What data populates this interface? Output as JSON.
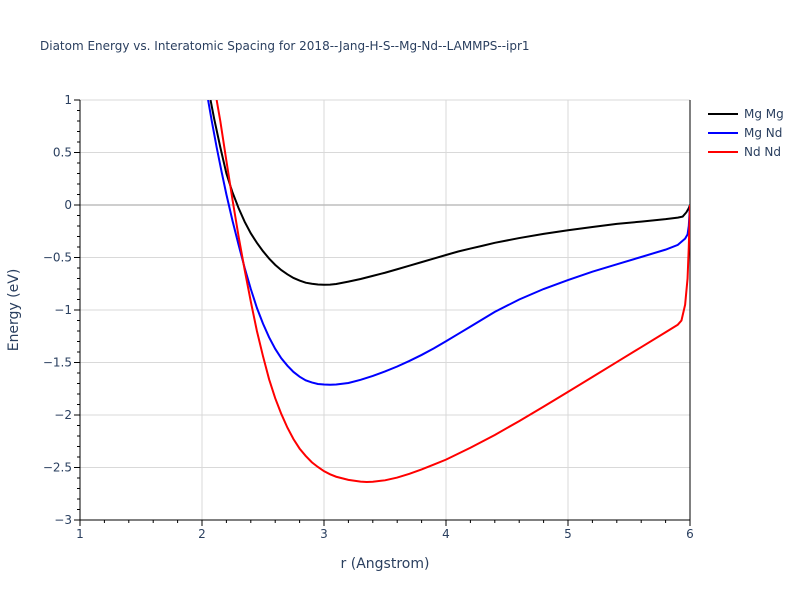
{
  "chart_data": {
    "type": "line",
    "title": "Diatom Energy vs. Interatomic Spacing for 2018--Jang-H-S--Mg-Nd--LAMMPS--ipr1",
    "xlabel": "r (Angstrom)",
    "ylabel": "Energy (eV)",
    "xlim": [
      1,
      6
    ],
    "ylim": [
      -3,
      1
    ],
    "xticks": [
      1,
      2,
      3,
      4,
      5,
      6
    ],
    "xtick_labels": [
      "1",
      "2",
      "3",
      "4",
      "5",
      "6"
    ],
    "yticks": [
      -3,
      -2.5,
      -2,
      -1.5,
      -1,
      -0.5,
      0,
      0.5,
      1
    ],
    "ytick_labels": [
      "−3",
      "−2.5",
      "−2",
      "−1.5",
      "−1",
      "−0.5",
      "0",
      "0.5",
      "1"
    ],
    "grid": true,
    "legend_position": "top-right",
    "series": [
      {
        "name": "Mg Mg",
        "color": "#000000",
        "x": [
          2.07,
          2.1,
          2.15,
          2.2,
          2.25,
          2.3,
          2.35,
          2.4,
          2.45,
          2.5,
          2.55,
          2.6,
          2.65,
          2.7,
          2.75,
          2.8,
          2.85,
          2.9,
          2.95,
          3.0,
          3.05,
          3.1,
          3.2,
          3.3,
          3.4,
          3.5,
          3.6,
          3.7,
          3.8,
          3.9,
          4.0,
          4.1,
          4.2,
          4.3,
          4.4,
          4.6,
          4.8,
          5.0,
          5.2,
          5.4,
          5.6,
          5.8,
          5.9,
          5.94,
          5.97,
          5.99,
          6.0
        ],
        "y": [
          1.0,
          0.82,
          0.55,
          0.3,
          0.12,
          -0.03,
          -0.16,
          -0.27,
          -0.36,
          -0.44,
          -0.51,
          -0.57,
          -0.62,
          -0.66,
          -0.695,
          -0.72,
          -0.74,
          -0.75,
          -0.757,
          -0.76,
          -0.758,
          -0.752,
          -0.73,
          -0.705,
          -0.675,
          -0.645,
          -0.612,
          -0.578,
          -0.544,
          -0.51,
          -0.476,
          -0.443,
          -0.415,
          -0.388,
          -0.36,
          -0.315,
          -0.275,
          -0.24,
          -0.21,
          -0.18,
          -0.158,
          -0.135,
          -0.12,
          -0.11,
          -0.07,
          -0.03,
          0.0
        ]
      },
      {
        "name": "Mg Nd",
        "color": "#0000ff",
        "x": [
          2.05,
          2.08,
          2.12,
          2.16,
          2.2,
          2.25,
          2.3,
          2.35,
          2.4,
          2.45,
          2.5,
          2.55,
          2.6,
          2.65,
          2.7,
          2.75,
          2.8,
          2.85,
          2.9,
          2.95,
          3.0,
          3.05,
          3.1,
          3.2,
          3.3,
          3.4,
          3.5,
          3.6,
          3.7,
          3.8,
          3.9,
          4.0,
          4.1,
          4.2,
          4.3,
          4.4,
          4.6,
          4.8,
          5.0,
          5.2,
          5.4,
          5.6,
          5.8,
          5.9,
          5.93,
          5.96,
          5.98,
          5.99,
          6.0
        ],
        "y": [
          1.0,
          0.8,
          0.55,
          0.32,
          0.1,
          -0.15,
          -0.38,
          -0.6,
          -0.8,
          -0.98,
          -1.13,
          -1.26,
          -1.37,
          -1.46,
          -1.53,
          -1.59,
          -1.635,
          -1.67,
          -1.69,
          -1.705,
          -1.71,
          -1.712,
          -1.71,
          -1.695,
          -1.665,
          -1.628,
          -1.585,
          -1.538,
          -1.485,
          -1.428,
          -1.365,
          -1.298,
          -1.228,
          -1.158,
          -1.088,
          -1.018,
          -0.9,
          -0.8,
          -0.715,
          -0.635,
          -0.565,
          -0.495,
          -0.425,
          -0.38,
          -0.35,
          -0.32,
          -0.28,
          -0.2,
          0.0
        ]
      },
      {
        "name": "Nd Nd",
        "color": "#ff0000",
        "x": [
          2.12,
          2.15,
          2.2,
          2.25,
          2.3,
          2.35,
          2.4,
          2.45,
          2.5,
          2.55,
          2.6,
          2.65,
          2.7,
          2.75,
          2.8,
          2.85,
          2.9,
          2.95,
          3.0,
          3.05,
          3.1,
          3.2,
          3.3,
          3.35,
          3.4,
          3.5,
          3.6,
          3.7,
          3.8,
          3.9,
          4.0,
          4.2,
          4.4,
          4.6,
          4.8,
          5.0,
          5.2,
          5.4,
          5.6,
          5.8,
          5.9,
          5.93,
          5.96,
          5.98,
          5.99,
          6.0
        ],
        "y": [
          1.0,
          0.8,
          0.42,
          0.05,
          -0.3,
          -0.62,
          -0.92,
          -1.2,
          -1.44,
          -1.66,
          -1.84,
          -1.99,
          -2.12,
          -2.23,
          -2.32,
          -2.39,
          -2.45,
          -2.495,
          -2.535,
          -2.565,
          -2.588,
          -2.618,
          -2.635,
          -2.638,
          -2.636,
          -2.622,
          -2.596,
          -2.56,
          -2.518,
          -2.472,
          -2.425,
          -2.312,
          -2.19,
          -2.058,
          -1.92,
          -1.78,
          -1.638,
          -1.496,
          -1.354,
          -1.212,
          -1.14,
          -1.1,
          -0.95,
          -0.7,
          -0.4,
          0.0
        ]
      }
    ]
  }
}
